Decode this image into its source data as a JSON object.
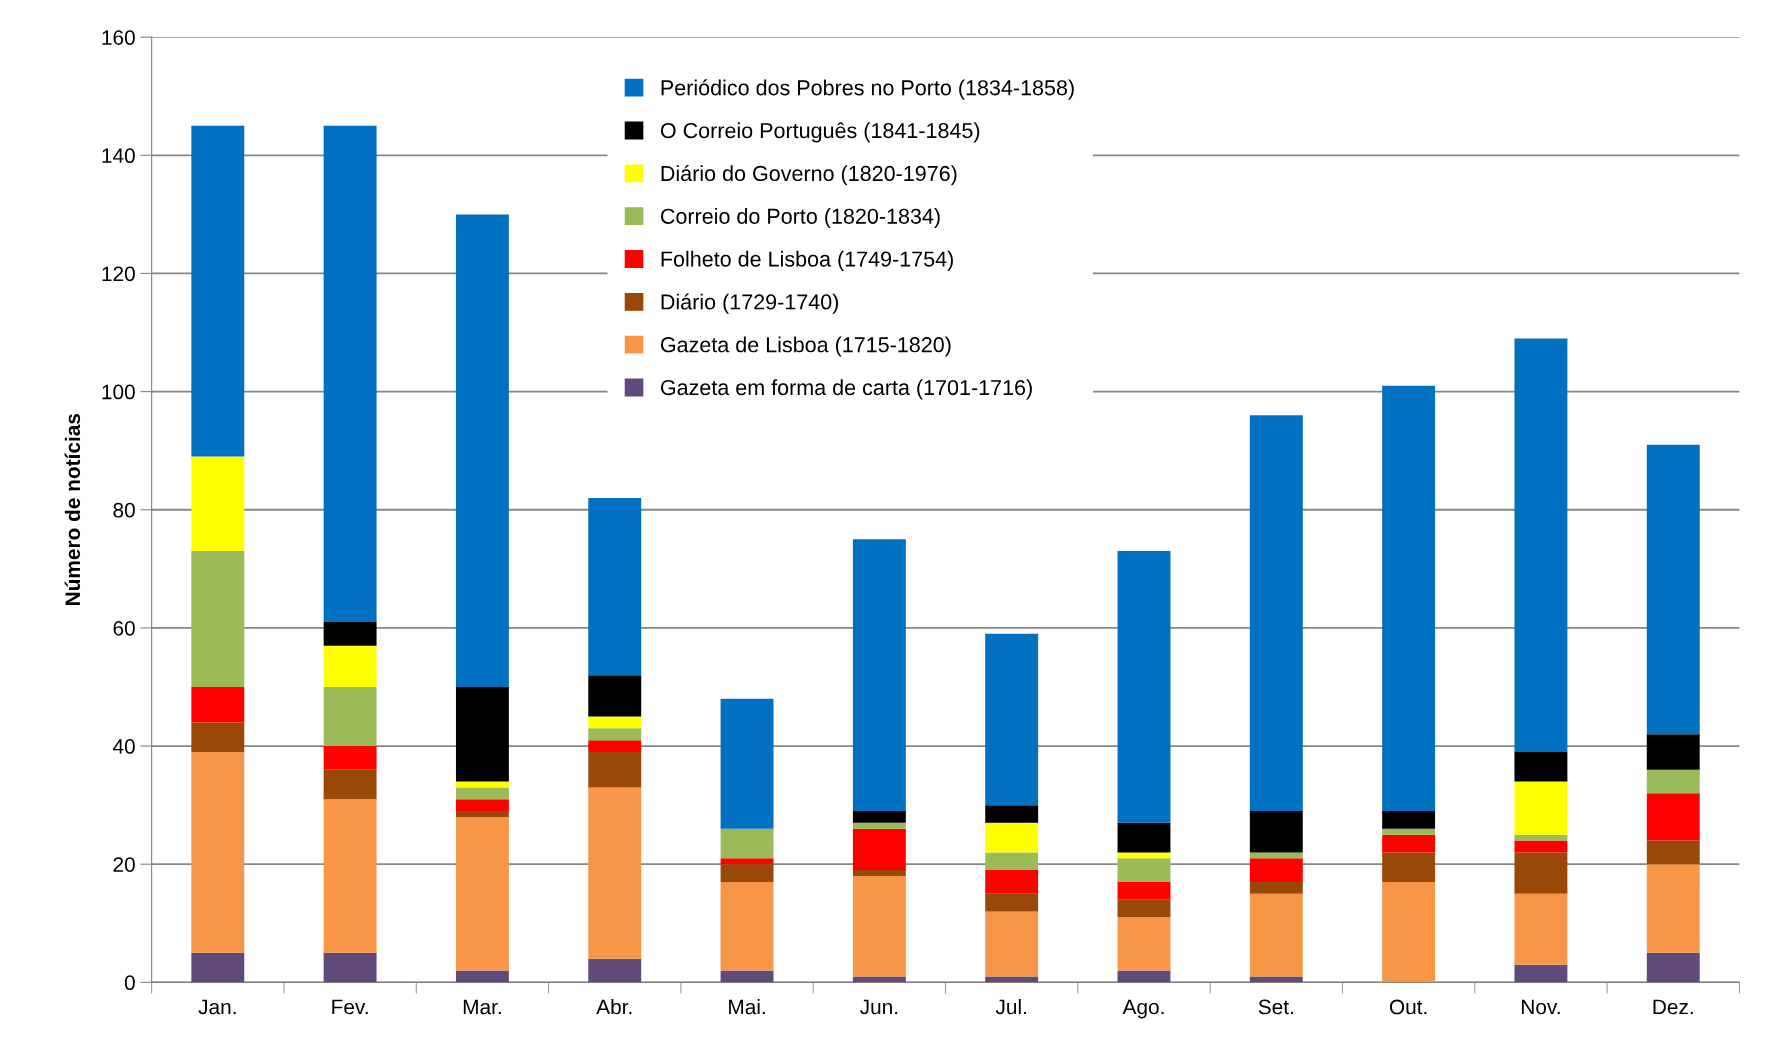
{
  "chart_data": {
    "type": "bar",
    "stacked": true,
    "ylabel": "Número de notícias",
    "categories": [
      "Jan.",
      "Fev.",
      "Mar.",
      "Abr.",
      "Mai.",
      "Jun.",
      "Jul.",
      "Ago.",
      "Set.",
      "Out.",
      "Nov.",
      "Dez."
    ],
    "series": [
      {
        "name": "Gazeta em forma de carta (1701-1716)",
        "color": "#604a7b",
        "values": [
          5,
          5,
          2,
          4,
          2,
          1,
          1,
          2,
          1,
          0,
          3,
          5
        ]
      },
      {
        "name": "Gazeta de Lisboa (1715-1820)",
        "color": "#f79646",
        "values": [
          34,
          26,
          26,
          29,
          15,
          17,
          11,
          9,
          14,
          17,
          12,
          15
        ]
      },
      {
        "name": "Diário (1729-1740)",
        "color": "#984807",
        "values": [
          5,
          5,
          1,
          6,
          3,
          1,
          3,
          3,
          2,
          5,
          7,
          4
        ]
      },
      {
        "name": "Folheto de Lisboa (1749-1754)",
        "color": "#ff0000",
        "values": [
          6,
          4,
          2,
          2,
          1,
          7,
          4,
          3,
          4,
          3,
          2,
          8
        ]
      },
      {
        "name": "Correio do Porto (1820-1834)",
        "color": "#9bbb59",
        "values": [
          23,
          10,
          2,
          2,
          5,
          1,
          3,
          4,
          1,
          1,
          1,
          4
        ]
      },
      {
        "name": "Diário do Governo (1820-1976)",
        "color": "#ffff00",
        "values": [
          16,
          7,
          1,
          2,
          0,
          0,
          5,
          1,
          0,
          0,
          9,
          0
        ]
      },
      {
        "name": "O Correio Português (1841-1845)",
        "color": "#000000",
        "values": [
          0,
          4,
          16,
          7,
          0,
          2,
          3,
          5,
          7,
          3,
          5,
          6
        ]
      },
      {
        "name": "Periódico dos Pobres no Porto (1834-1858)",
        "color": "#0070c0",
        "values": [
          56,
          84,
          80,
          30,
          22,
          46,
          29,
          46,
          67,
          72,
          70,
          49
        ]
      }
    ],
    "ylim": [
      0,
      160
    ],
    "yticks": [
      0,
      20,
      40,
      60,
      80,
      100,
      120,
      140,
      160
    ],
    "grid": "y",
    "legend": "top"
  }
}
